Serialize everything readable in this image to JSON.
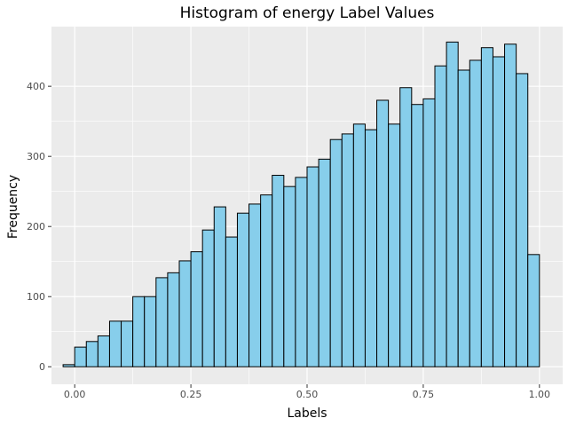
{
  "chart_data": {
    "type": "bar",
    "title": "Histogram of energy Label Values",
    "xlabel": "Labels",
    "ylabel": "Frequency",
    "xlim": [
      -0.05,
      1.05
    ],
    "ylim": [
      -25,
      485
    ],
    "x_ticks": [
      {
        "value": 0.0,
        "label": "0.00"
      },
      {
        "value": 0.25,
        "label": "0.25"
      },
      {
        "value": 0.5,
        "label": "0.50"
      },
      {
        "value": 0.75,
        "label": "0.75"
      },
      {
        "value": 1.0,
        "label": "1.00"
      }
    ],
    "y_ticks": [
      {
        "value": 0,
        "label": "0"
      },
      {
        "value": 100,
        "label": "100"
      },
      {
        "value": 200,
        "label": "200"
      },
      {
        "value": 300,
        "label": "300"
      },
      {
        "value": 400,
        "label": "400"
      }
    ],
    "grid": true,
    "background_color": "#ebebeb",
    "bar_fill": "#87ceeb",
    "bar_edge": "#000000",
    "bin_width": 0.025,
    "bin_centers": [
      -0.0125,
      0.0125,
      0.0375,
      0.0625,
      0.0875,
      0.1125,
      0.1375,
      0.1625,
      0.1875,
      0.2125,
      0.2375,
      0.2625,
      0.2875,
      0.3125,
      0.3375,
      0.3625,
      0.3875,
      0.4125,
      0.4375,
      0.4625,
      0.4875,
      0.5125,
      0.5375,
      0.5625,
      0.5875,
      0.6125,
      0.6375,
      0.6625,
      0.6875,
      0.7125,
      0.7375,
      0.7625,
      0.7875,
      0.8125,
      0.8375,
      0.8625,
      0.8875,
      0.9125,
      0.9375,
      0.9625,
      0.9875
    ],
    "values": [
      3,
      28,
      36,
      44,
      65,
      65,
      100,
      100,
      127,
      134,
      151,
      164,
      195,
      228,
      185,
      219,
      232,
      245,
      273,
      257,
      270,
      285,
      296,
      324,
      332,
      346,
      338,
      380,
      346,
      398,
      374,
      382,
      429,
      463,
      423,
      437,
      455,
      442,
      460,
      418,
      160
    ]
  }
}
